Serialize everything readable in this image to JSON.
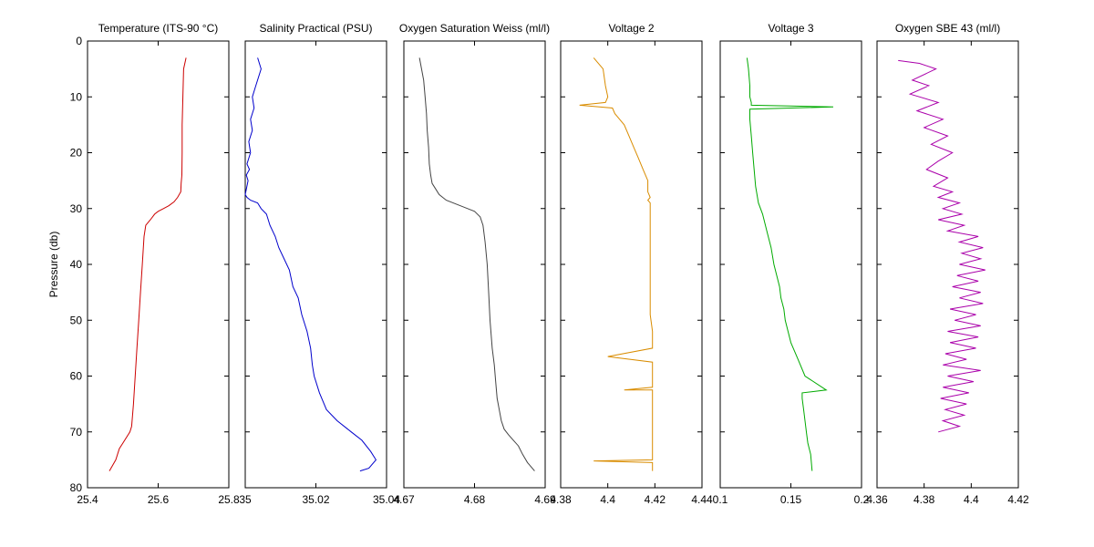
{
  "figure": {
    "ylabel": "Pressure (db)"
  },
  "chart_data": [
    {
      "type": "line",
      "title": "Temperature (ITS-90 °C)",
      "xlim": [
        25.4,
        25.8
      ],
      "ylim": [
        80,
        0
      ],
      "xticks": [
        "25.4",
        "25.6",
        "25.8"
      ],
      "yticks": [
        "0",
        "10",
        "20",
        "30",
        "40",
        "50",
        "60",
        "70",
        "80"
      ],
      "color": "#cc0000",
      "x": [
        25.679,
        25.672,
        25.67,
        25.668,
        25.668,
        25.667,
        25.665,
        25.664,
        25.655,
        25.645,
        25.63,
        25.615,
        25.6,
        25.59,
        25.578,
        25.565,
        25.56,
        25.555,
        25.55,
        25.545,
        25.54,
        25.535,
        25.53,
        25.525,
        25.52,
        25.5,
        25.49,
        25.48,
        25.462
      ],
      "y": [
        3,
        5,
        10,
        15,
        20,
        24,
        25.5,
        27,
        28,
        28.8,
        29.5,
        30,
        30.5,
        31,
        32,
        33,
        35,
        40,
        45,
        50,
        55,
        60,
        65,
        69,
        70,
        72,
        73,
        75,
        77
      ]
    },
    {
      "type": "line",
      "title": "Salinity Practical (PSU)",
      "xlim": [
        35.0,
        35.04
      ],
      "ylim": [
        80,
        0
      ],
      "xticks": [
        "35",
        "35.02",
        "35.04"
      ],
      "yticks": [],
      "color": "#0000cc",
      "x": [
        35.0035,
        35.0045,
        35.003,
        35.002,
        35.0025,
        35.0015,
        35.002,
        35.001,
        35.0015,
        35.0005,
        35.0012,
        35.0003,
        35.0008,
        35.0,
        35.0005,
        35.0015,
        35.0035,
        35.0045,
        35.006,
        35.007,
        35.0085,
        35.0095,
        35.011,
        35.0125,
        35.0135,
        35.015,
        35.016,
        35.0175,
        35.0185,
        35.019,
        35.0195,
        35.021,
        35.023,
        35.026,
        35.03,
        35.033,
        35.0355,
        35.037,
        35.035,
        35.0325
      ],
      "y": [
        3,
        5,
        8,
        10,
        12,
        14,
        16,
        18,
        20,
        22,
        23,
        24,
        25,
        27.5,
        28,
        28.5,
        29,
        30,
        31,
        33,
        35,
        37,
        39,
        41,
        44,
        46,
        49,
        52,
        55,
        58,
        60,
        63,
        66,
        68,
        70,
        71.5,
        73.5,
        75,
        76.5,
        77
      ]
    },
    {
      "type": "line",
      "title": "Oxygen Saturation Weiss (ml/l)",
      "xlim": [
        4.67,
        4.69
      ],
      "ylim": [
        80,
        0
      ],
      "xticks": [
        "4.67",
        "4.68",
        "4.69"
      ],
      "yticks": [],
      "color": "#444444",
      "x": [
        4.6722,
        4.6725,
        4.6728,
        4.673,
        4.6732,
        4.6733,
        4.6735,
        4.6736,
        4.6738,
        4.674,
        4.6745,
        4.675,
        4.676,
        4.678,
        4.68,
        4.6808,
        4.6812,
        4.6815,
        4.6818,
        4.682,
        4.6822,
        4.6825,
        4.6828,
        4.683,
        4.6832,
        4.6835,
        4.6838,
        4.6842,
        4.6848,
        4.6855,
        4.6862,
        4.6868,
        4.6875,
        4.6885
      ],
      "y": [
        3,
        5,
        7,
        10,
        13,
        16,
        19,
        22,
        24,
        25.5,
        26.5,
        27.5,
        28.5,
        29.5,
        30.5,
        31.5,
        33,
        36,
        40,
        45,
        50,
        55,
        58,
        61,
        64,
        66,
        68,
        69.5,
        70.5,
        71.5,
        72.5,
        74,
        75.5,
        77
      ]
    },
    {
      "type": "line",
      "title": "Voltage 2",
      "xlim": [
        4.38,
        4.44
      ],
      "ylim": [
        80,
        0
      ],
      "xticks": [
        "4.38",
        "4.4",
        "4.42",
        "4.44"
      ],
      "yticks": [],
      "color": "#d98c00",
      "x": [
        4.394,
        4.398,
        4.399,
        4.4,
        4.399,
        4.388,
        4.402,
        4.403,
        4.405,
        4.407,
        4.409,
        4.411,
        4.413,
        4.415,
        4.417,
        4.417,
        4.418,
        4.417,
        4.418,
        4.418,
        4.418,
        4.418,
        4.418,
        4.418,
        4.418,
        4.418,
        4.419,
        4.419,
        4.4,
        4.419,
        4.419,
        4.419,
        4.419,
        4.419,
        4.419,
        4.419,
        4.419,
        4.419,
        4.419,
        4.419,
        4.407,
        4.419,
        4.419,
        4.419,
        4.419,
        4.419,
        4.419,
        4.419,
        4.419,
        4.394,
        4.419,
        4.419,
        4.419,
        4.419,
        4.419,
        4.419
      ],
      "y": [
        3,
        5,
        8,
        10,
        11,
        11.5,
        12,
        13,
        14,
        15,
        17,
        19,
        21,
        23,
        25,
        27,
        28,
        28.5,
        29,
        31,
        34,
        37,
        40,
        43,
        46,
        49,
        52,
        55,
        56.5,
        57.5,
        59,
        59.5,
        60,
        61,
        61.5,
        62,
        62,
        62,
        62,
        62,
        62.5,
        62.5,
        64,
        66,
        68,
        70,
        72,
        74,
        75,
        75.2,
        75.5,
        75.8,
        76,
        76.3,
        76.7,
        77
      ]
    },
    {
      "type": "line",
      "title": "Voltage 3",
      "xlim": [
        0.1,
        0.2
      ],
      "ylim": [
        80,
        0
      ],
      "xticks": [
        "0.1",
        "0.15",
        "0.2"
      ],
      "yticks": [],
      "color": "#00aa00",
      "x": [
        0.119,
        0.12,
        0.121,
        0.121,
        0.122,
        0.122,
        0.18,
        0.121,
        0.121,
        0.121,
        0.122,
        0.123,
        0.124,
        0.125,
        0.127,
        0.13,
        0.133,
        0.136,
        0.138,
        0.14,
        0.142,
        0.143,
        0.145,
        0.146,
        0.148,
        0.15,
        0.155,
        0.16,
        0.175,
        0.158,
        0.158,
        0.159,
        0.16,
        0.161,
        0.162,
        0.164,
        0.165
      ],
      "y": [
        3,
        5,
        8,
        10,
        11,
        11.5,
        11.8,
        12.2,
        12.8,
        14,
        17,
        20,
        23,
        26,
        29,
        31,
        34,
        37,
        40,
        42,
        44,
        46,
        48,
        50,
        52,
        54,
        57,
        60,
        62.5,
        63,
        64,
        66,
        68,
        70,
        72,
        74,
        77
      ]
    },
    {
      "type": "line",
      "title": "Oxygen SBE 43 (ml/l)",
      "xlim": [
        4.36,
        4.42
      ],
      "ylim": [
        80,
        0
      ],
      "xticks": [
        "4.36",
        "4.38",
        "4.4",
        "4.42"
      ],
      "yticks": [],
      "color": "#aa00aa",
      "x": [
        4.369,
        4.378,
        4.385,
        4.375,
        4.382,
        4.374,
        4.386,
        4.377,
        4.388,
        4.38,
        4.39,
        4.383,
        4.392,
        4.386,
        4.381,
        4.39,
        4.384,
        4.392,
        4.386,
        4.395,
        4.388,
        4.396,
        4.386,
        4.397,
        4.39,
        4.403,
        4.395,
        4.405,
        4.396,
        4.404,
        4.395,
        4.406,
        4.394,
        4.403,
        4.392,
        4.404,
        4.395,
        4.405,
        4.391,
        4.402,
        4.393,
        4.404,
        4.39,
        4.403,
        4.391,
        4.402,
        4.389,
        4.398,
        4.388,
        4.404,
        4.39,
        4.401,
        4.388,
        4.399,
        4.387,
        4.398,
        4.389,
        4.397,
        4.388,
        4.395,
        4.386
      ],
      "y": [
        3.5,
        4,
        5,
        7,
        8,
        9.5,
        11,
        12.5,
        14,
        15.5,
        17,
        18.5,
        20,
        21.5,
        23,
        24.5,
        26,
        27,
        28,
        29,
        30,
        31,
        32,
        33,
        34,
        35,
        36,
        37,
        38,
        39,
        40,
        41,
        42,
        43,
        44,
        45,
        46,
        47,
        48,
        49,
        50,
        51,
        52,
        53,
        54,
        55,
        56,
        57,
        58,
        59,
        60,
        61,
        62,
        63,
        64,
        65,
        66,
        67,
        68,
        69,
        70
      ]
    }
  ]
}
